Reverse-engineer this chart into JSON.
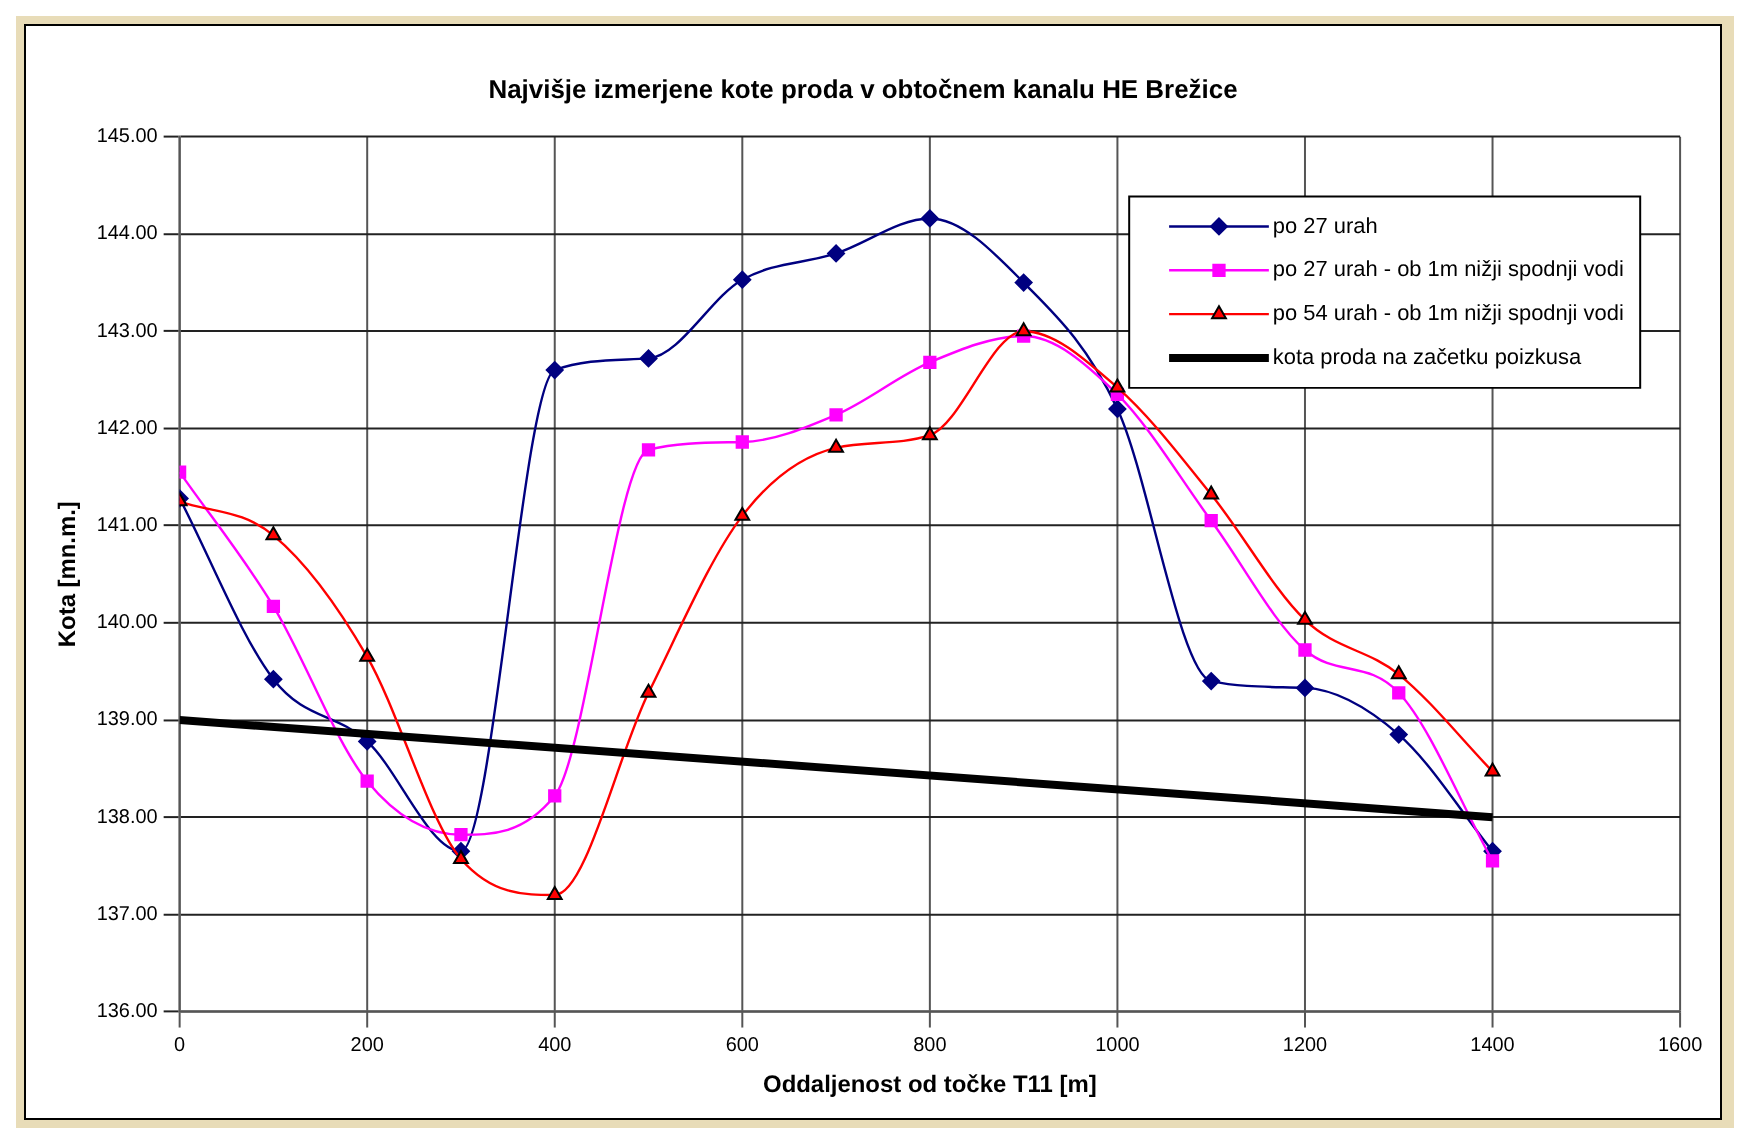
{
  "chart_data": {
    "type": "line",
    "title": "Najvišje izmerjene kote proda v obtočnem kanalu HE Brežice",
    "xlabel": "Oddaljenost od točke T11 [m]",
    "ylabel": "Kota [mn.m.]",
    "xlim": [
      0,
      1600
    ],
    "xticks": [
      0,
      200,
      400,
      600,
      800,
      1000,
      1200,
      1400,
      1600
    ],
    "ylim": [
      136,
      145
    ],
    "yticks": [
      {
        "value": 136,
        "label": "136.00"
      },
      {
        "value": 137,
        "label": "137.00"
      },
      {
        "value": 138,
        "label": "138.00"
      },
      {
        "value": 139,
        "label": "139.00"
      },
      {
        "value": 140,
        "label": "140.00"
      },
      {
        "value": 141,
        "label": "141.00"
      },
      {
        "value": 142,
        "label": "142.00"
      },
      {
        "value": 143,
        "label": "143.00"
      },
      {
        "value": 144,
        "label": "144.00"
      },
      {
        "value": 145,
        "label": "145.00"
      }
    ],
    "grid": true,
    "legend": "top right",
    "line_style": "solid",
    "series": [
      {
        "name": "po 27 urah",
        "color": "#000080",
        "marker": "diamond",
        "x": [
          0,
          100,
          200,
          300,
          400,
          500,
          600,
          700,
          800,
          900,
          1000,
          1100,
          1200,
          1300,
          1400
        ],
        "values": [
          141.28,
          139.42,
          138.78,
          137.65,
          142.6,
          142.72,
          143.53,
          143.8,
          144.16,
          143.5,
          142.2,
          139.4,
          139.33,
          138.85,
          137.65
        ]
      },
      {
        "name": "po 27 urah - ob 1m nižji spodnji vodi",
        "color": "#ff00ff",
        "marker": "square",
        "x": [
          0,
          100,
          200,
          300,
          400,
          500,
          600,
          700,
          800,
          900,
          1000,
          1100,
          1200,
          1300,
          1400
        ],
        "values": [
          141.55,
          140.17,
          138.37,
          137.82,
          138.22,
          141.78,
          141.86,
          142.14,
          142.68,
          142.95,
          142.35,
          141.05,
          139.72,
          139.28,
          137.55
        ]
      },
      {
        "name": "po 54 urah - ob 1m nižji spodnji vodi",
        "color": "#ff0000",
        "marker": "triangle",
        "x": [
          0,
          100,
          200,
          300,
          400,
          500,
          600,
          700,
          800,
          900,
          1000,
          1100,
          1200,
          1300,
          1400
        ],
        "values": [
          141.25,
          140.9,
          139.65,
          137.57,
          137.2,
          139.28,
          141.1,
          141.8,
          141.93,
          143.0,
          142.42,
          141.32,
          140.03,
          139.47,
          138.47
        ]
      },
      {
        "name": "kota proda na začetku poizkusa",
        "color": "#000000",
        "marker": "none",
        "x": [
          0,
          1400
        ],
        "values": [
          139.0,
          138.0
        ]
      }
    ]
  }
}
